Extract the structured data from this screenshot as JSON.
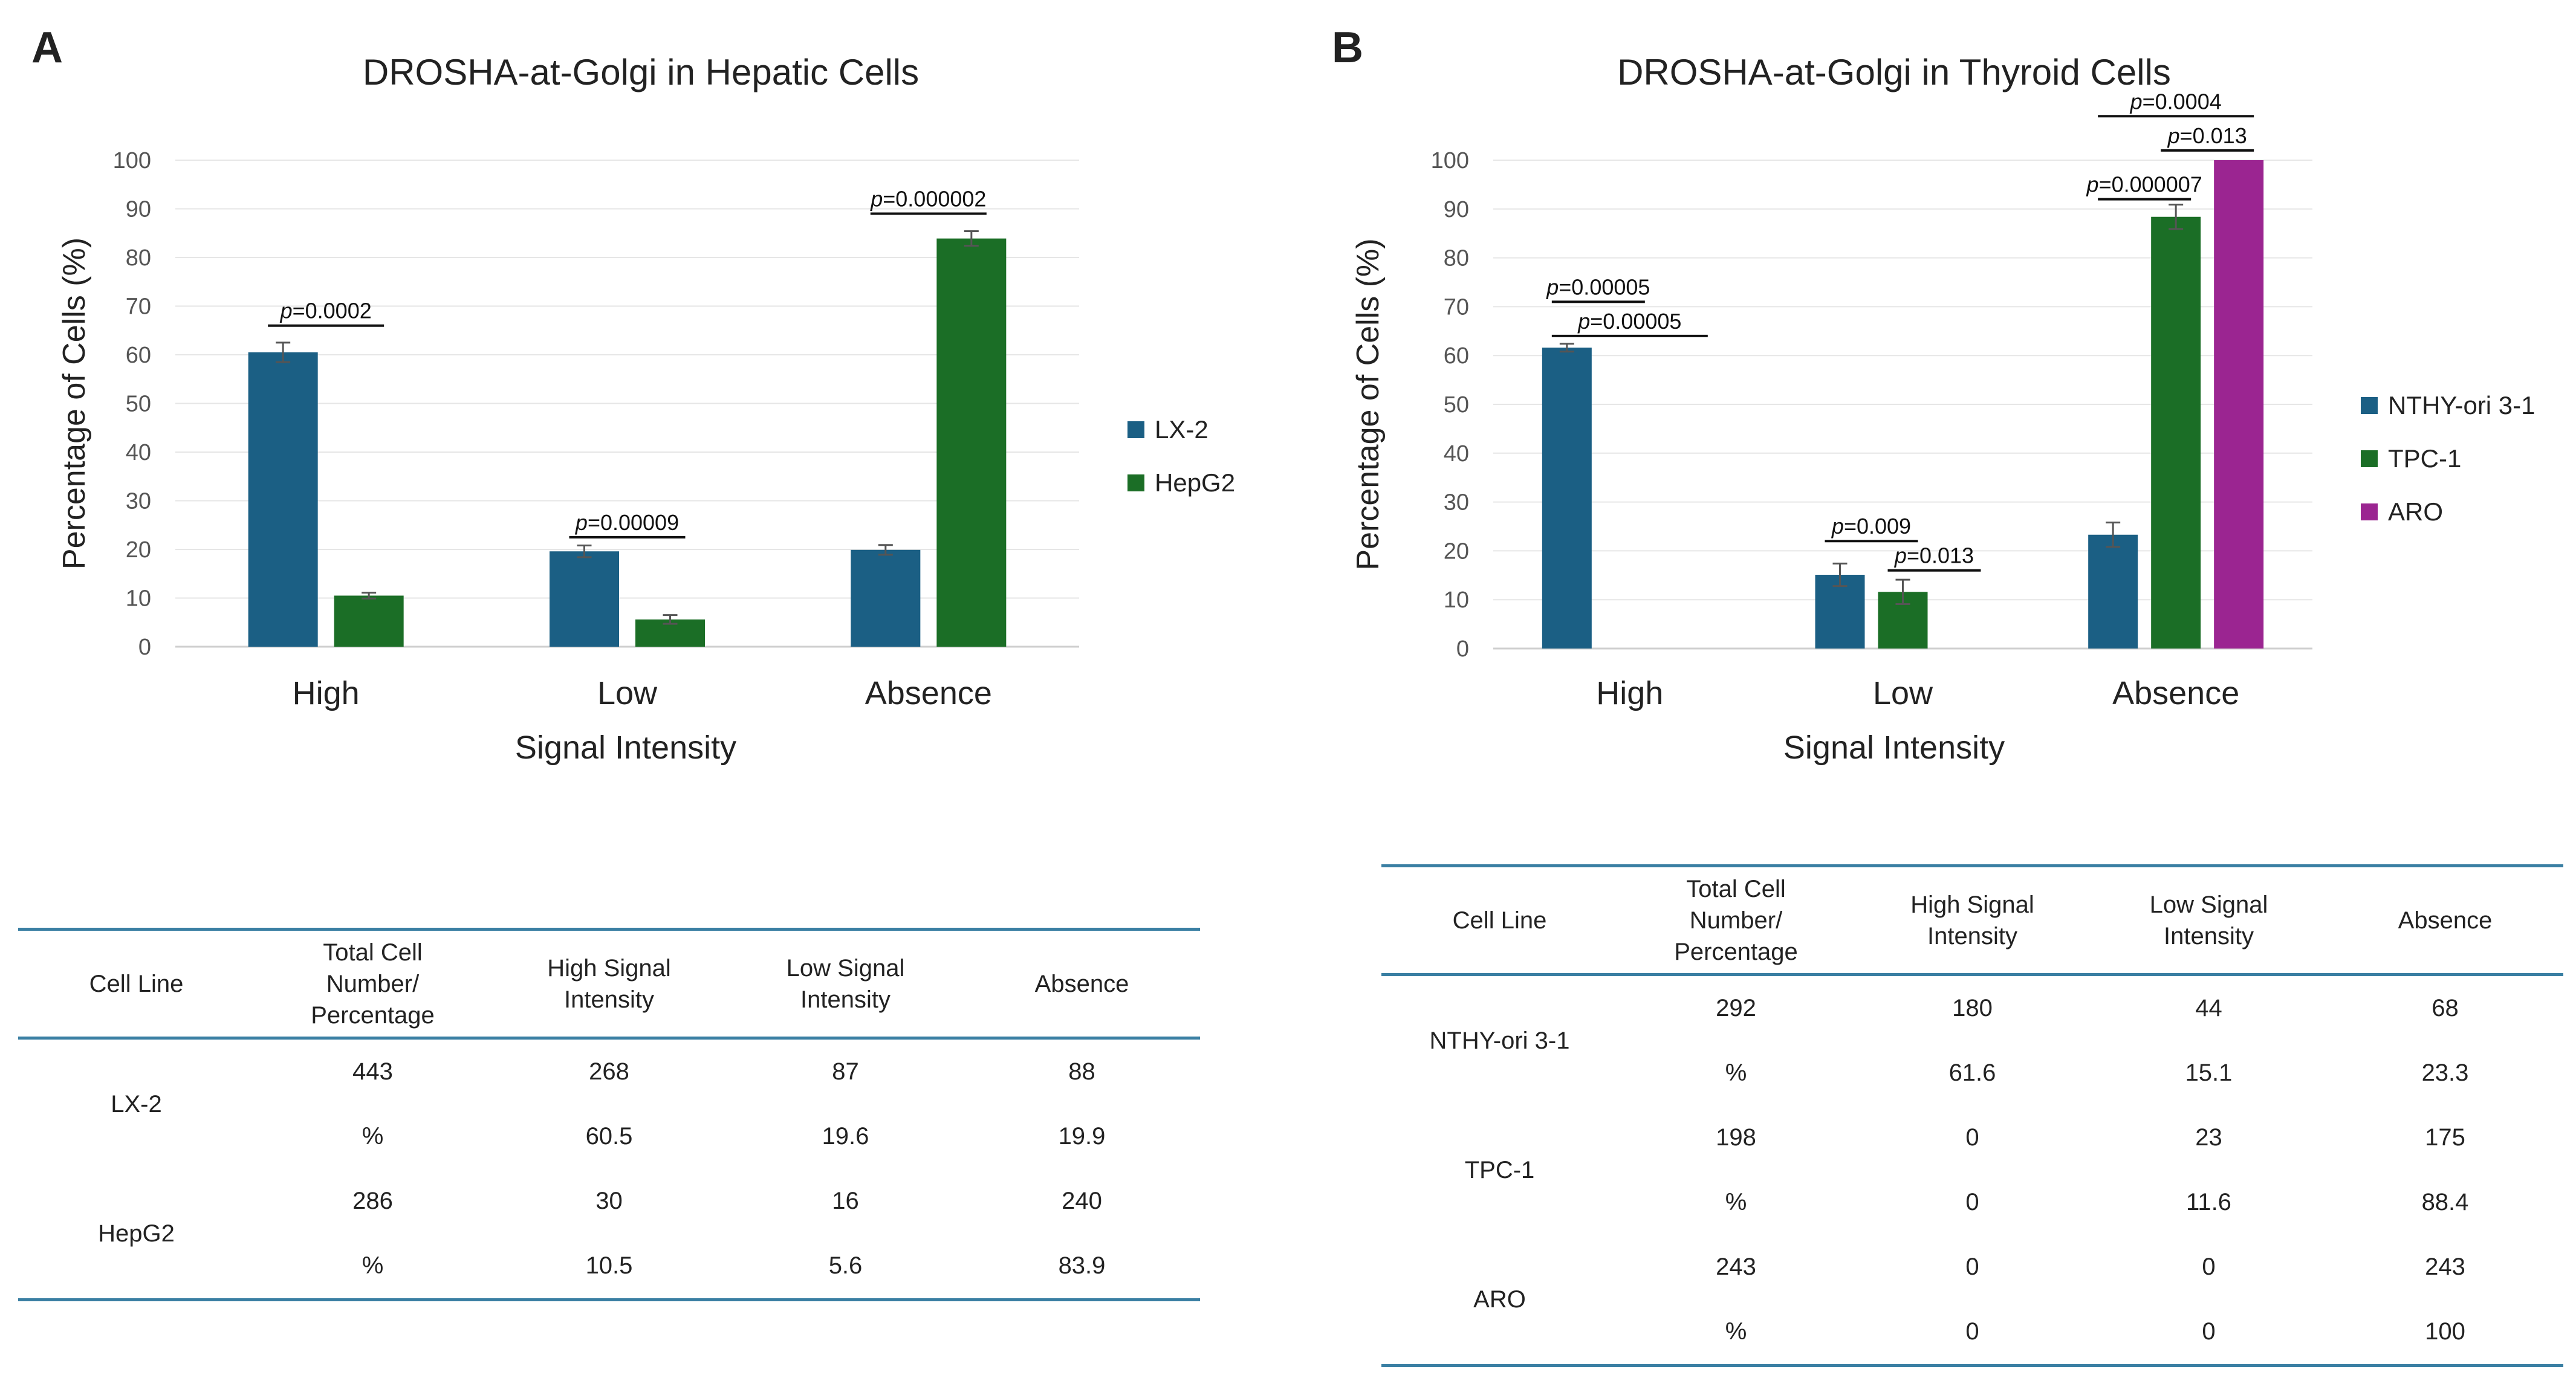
{
  "panel_a": {
    "letter": "A",
    "table": {
      "headers": [
        "Cell Line",
        "Total Cell Number/ Percentage",
        "High Signal Intensity",
        "Low Signal Intensity",
        "Absence"
      ],
      "rows": [
        {
          "line": "LX-2",
          "count": [
            "443",
            "268",
            "87",
            "88"
          ],
          "pct": [
            "%",
            "60.5",
            "19.6",
            "19.9"
          ]
        },
        {
          "line": "HepG2",
          "count": [
            "286",
            "30",
            "16",
            "240"
          ],
          "pct": [
            "%",
            "10.5",
            "5.6",
            "83.9"
          ]
        }
      ]
    }
  },
  "panel_b": {
    "letter": "B",
    "table": {
      "headers": [
        "Cell Line",
        "Total Cell Number/ Percentage",
        "High Signal Intensity",
        "Low Signal Intensity",
        "Absence"
      ],
      "rows": [
        {
          "line": "NTHY-ori 3-1",
          "count": [
            "292",
            "180",
            "44",
            "68"
          ],
          "pct": [
            "%",
            "61.6",
            "15.1",
            "23.3"
          ]
        },
        {
          "line": "TPC-1",
          "count": [
            "198",
            "0",
            "23",
            "175"
          ],
          "pct": [
            "%",
            "0",
            "11.6",
            "88.4"
          ]
        },
        {
          "line": "ARO",
          "count": [
            "243",
            "0",
            "0",
            "243"
          ],
          "pct": [
            "%",
            "0",
            "0",
            "100"
          ]
        }
      ]
    }
  },
  "chart_data": [
    {
      "type": "bar",
      "title": "DROSHA-at-Golgi in Hepatic Cells",
      "xlabel": "Signal Intensity",
      "ylabel": "Percentage of Cells (%)",
      "ylim": [
        0,
        100
      ],
      "yticks": [
        0,
        10,
        20,
        30,
        40,
        50,
        60,
        70,
        80,
        90,
        100
      ],
      "grid": true,
      "legend_position": "right",
      "categories": [
        "High",
        "Low",
        "Absence"
      ],
      "series": [
        {
          "name": "LX-2",
          "color": "#1b5f84",
          "values": [
            60.5,
            19.6,
            19.9
          ],
          "errors": [
            2.0,
            1.2,
            1.0
          ]
        },
        {
          "name": "HepG2",
          "color": "#1b6e26",
          "values": [
            10.5,
            5.6,
            83.9
          ],
          "errors": [
            0.6,
            0.9,
            1.5
          ]
        }
      ],
      "annotations": [
        {
          "label": "p",
          "value": "=0.0002",
          "category": 0,
          "from": 0,
          "to": 1,
          "level": 66
        },
        {
          "label": "p",
          "value": "=0.00009",
          "category": 1,
          "from": 0,
          "to": 1,
          "level": 22.5
        },
        {
          "label": "p",
          "value": "=0.000002",
          "category": 2,
          "from": 0,
          "to": 1,
          "level": 89
        }
      ]
    },
    {
      "type": "bar",
      "title": "DROSHA-at-Golgi in Thyroid Cells",
      "xlabel": "Signal Intensity",
      "ylabel": "Percentage of Cells (%)",
      "ylim": [
        0,
        100
      ],
      "yticks": [
        0,
        10,
        20,
        30,
        40,
        50,
        60,
        70,
        80,
        90,
        100
      ],
      "grid": true,
      "legend_position": "right",
      "categories": [
        "High",
        "Low",
        "Absence"
      ],
      "series": [
        {
          "name": "NTHY-ori 3-1",
          "color": "#1b5f84",
          "values": [
            61.6,
            15.1,
            23.3
          ],
          "errors": [
            0.8,
            2.3,
            2.5
          ]
        },
        {
          "name": "TPC-1",
          "color": "#1b6e26",
          "values": [
            0,
            11.6,
            88.4
          ],
          "errors": [
            0,
            2.5,
            2.5
          ]
        },
        {
          "name": "ARO",
          "color": "#9b2591",
          "values": [
            0,
            0,
            100
          ],
          "errors": [
            0,
            0,
            0
          ]
        }
      ],
      "annotations": [
        {
          "label": "p",
          "value": "=0.00005",
          "category": 0,
          "from": 0,
          "to": 1,
          "level": 71
        },
        {
          "label": "p",
          "value": "=0.00005",
          "category": 0,
          "from": 0,
          "to": 2,
          "level": 64
        },
        {
          "label": "p",
          "value": "=0.009",
          "category": 1,
          "from": 0,
          "to": 1,
          "level": 22
        },
        {
          "label": "p",
          "value": "=0.013",
          "category": 1,
          "from": 1,
          "to": 2,
          "level": 16
        },
        {
          "label": "p",
          "value": "=0.000007",
          "category": 2,
          "from": 0,
          "to": 1,
          "level": 92
        },
        {
          "label": "p",
          "value": "=0.0004",
          "category": 2,
          "from": 0,
          "to": 2,
          "level": 109
        },
        {
          "label": "p",
          "value": "=0.013",
          "category": 2,
          "from": 1,
          "to": 2,
          "level": 102
        }
      ]
    }
  ]
}
